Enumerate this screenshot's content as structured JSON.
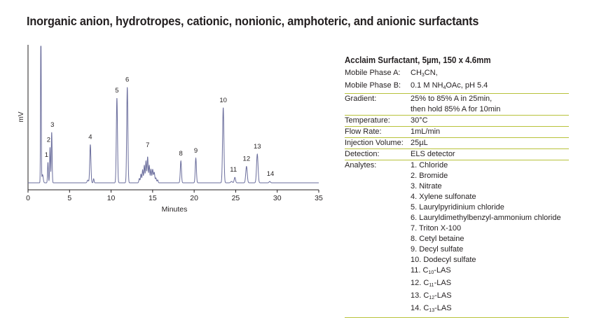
{
  "title": "Inorganic anion, hydrotropes, cationic, nonionic, amphoteric, and anionic surfactants",
  "chart_data": {
    "type": "line",
    "xlabel": "Minutes",
    "ylabel": "mV",
    "xlim": [
      0,
      35
    ],
    "xticks": [
      "0",
      "5",
      "10",
      "15",
      "20",
      "25",
      "30",
      "35"
    ],
    "baseline": 0,
    "y_scale": "arbitrary (no y tick labels)",
    "peaks": [
      {
        "label": "1",
        "time": 2.4,
        "height": 0.15
      },
      {
        "label": "2",
        "time": 2.65,
        "height": 0.26
      },
      {
        "label": "3",
        "time": 2.85,
        "height": 0.37
      },
      {
        "label": "4",
        "time": 7.5,
        "height": 0.28
      },
      {
        "label": "5",
        "time": 10.7,
        "height": 0.62
      },
      {
        "label": "6",
        "time": 11.95,
        "height": 0.7
      },
      {
        "label": "7",
        "time": 14.4,
        "height": 0.19
      },
      {
        "label": "8",
        "time": 18.4,
        "height": 0.16
      },
      {
        "label": "9",
        "time": 20.2,
        "height": 0.18
      },
      {
        "label": "10",
        "time": 23.5,
        "height": 0.55
      },
      {
        "label": "11",
        "time": 24.9,
        "height": 0.04
      },
      {
        "label": "12",
        "time": 26.3,
        "height": 0.12
      },
      {
        "label": "13",
        "time": 27.6,
        "height": 0.21
      },
      {
        "label": "14",
        "time": 29.1,
        "height": 0.01
      }
    ]
  },
  "info": {
    "title": "Acclaim Surfactant, 5µm, 150 x 4.6mm",
    "mobile_a_label": "Mobile Phase A:",
    "mobile_a_pre": "CH",
    "mobile_a_sub": "3",
    "mobile_a_post": "CN,",
    "mobile_b_label": "Mobile Phase B:",
    "mobile_b_pre": "0.1 M NH",
    "mobile_b_sub": "4",
    "mobile_b_post": "OAc, pH 5.4",
    "gradient_label": "Gradient:",
    "gradient_line1": "25% to 85% A in 25min,",
    "gradient_line2": "then hold 85% A for 10min",
    "temperature_label": "Temperature:",
    "temperature": "30°C",
    "flow_label": "Flow Rate:",
    "flow": "1mL/min",
    "injection_label": "Injection Volume:",
    "injection": "25µL",
    "detection_label": "Detection:",
    "detection": "ELS detector",
    "analytes_label": "Analytes:",
    "analytes": [
      "1. Chloride",
      "2. Bromide",
      "3. Nitrate",
      "4. Xylene sulfonate",
      "5. Laurylpyridinium chloride",
      "6. Lauryldimethylbenzyl-ammonium chloride",
      "7. Triton X-100",
      "8. Cetyl betaine",
      "9. Decyl sulfate",
      "10. Dodecyl sulfate"
    ],
    "las": [
      {
        "pre": "11. C",
        "sub": "10",
        "post": "-LAS"
      },
      {
        "pre": "12. C",
        "sub": "11",
        "post": "-LAS"
      },
      {
        "pre": "13. C",
        "sub": "12",
        "post": "-LAS"
      },
      {
        "pre": "14. C",
        "sub": "13",
        "post": "-LAS"
      }
    ]
  }
}
